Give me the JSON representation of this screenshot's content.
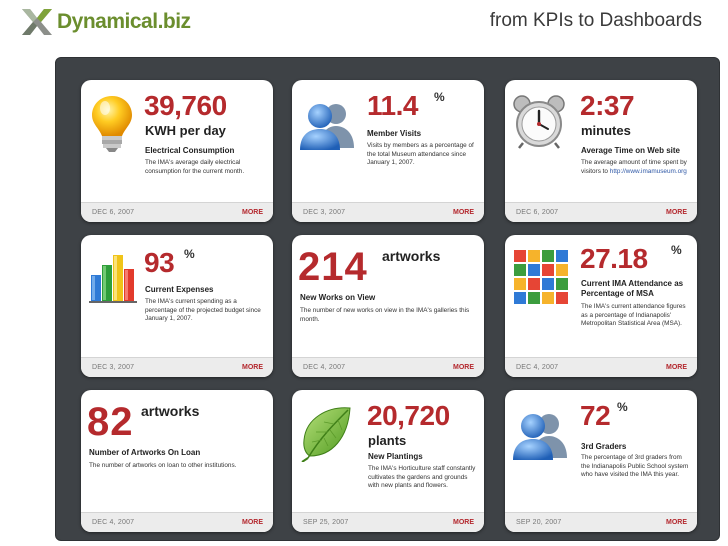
{
  "header": {
    "brand_prefix": "Dynamical",
    "brand_suffix": ".biz",
    "title": "from KPIs to Dashboards"
  },
  "colors": {
    "accent": "#b52a2d",
    "board": "#3e4246",
    "brand": "#6b8e2e"
  },
  "cards": {
    "electricity": {
      "icon": "lightbulb-icon",
      "value": "39,760",
      "unit": "KWH per day",
      "label": "Electrical Consumption",
      "description": "The IMA's average daily electrical consumption for the current month.",
      "date": "DEC 6, 2007",
      "more": "MORE"
    },
    "member_visits": {
      "icon": "users-icon",
      "value": "11.4",
      "suffix": "%",
      "label": "Member Visits",
      "description": "Visits by members as a percentage of the total Museum attendance since January 1, 2007.",
      "date": "DEC 3, 2007",
      "more": "MORE"
    },
    "time_on_site": {
      "icon": "alarm-clock-icon",
      "value": "2:37",
      "unit": "minutes",
      "label": "Average Time on Web site",
      "description": "The average amount of time spent by visitors to",
      "link": "http://www.imamuseum.org",
      "date": "DEC 6, 2007",
      "more": "MORE"
    },
    "expenses": {
      "icon": "bar-chart-icon",
      "value": "93",
      "suffix": "%",
      "label": "Current Expenses",
      "description": "The IMA's current spending as a percentage of the projected budget since January 1, 2007.",
      "date": "DEC 3, 2007",
      "more": "MORE"
    },
    "new_works": {
      "value": "214",
      "suffix": "artworks",
      "label": "New Works on View",
      "description": "The number of new works on view in the IMA's galleries this month.",
      "date": "DEC 4, 2007",
      "more": "MORE"
    },
    "attendance": {
      "icon": "color-grid-icon",
      "value": "27.18",
      "suffix": "%",
      "label": "Current IMA Attendance as Percentage of MSA",
      "description": "The IMA's current attendance figures as a percentage of Indianapolis' Metropolitan Statistical Area (MSA).",
      "date": "DEC 4, 2007",
      "more": "MORE"
    },
    "on_loan": {
      "value": "82",
      "suffix": "artworks",
      "label": "Number of Artworks On Loan",
      "description": "The number of artworks on loan to other institutions.",
      "date": "DEC 4, 2007",
      "more": "MORE"
    },
    "plantings": {
      "icon": "leaf-icon",
      "value": "20,720",
      "unit": "plants",
      "label": "New Plantings",
      "description": "The IMA's Horticulture staff constantly cultivates the gardens and grounds with new plants and flowers.",
      "date": "SEP 25, 2007",
      "more": "MORE"
    },
    "third_graders": {
      "icon": "users-icon",
      "value": "72",
      "suffix": "%",
      "label": "3rd Graders",
      "description": "The percentage of 3rd graders from the Indianapolis Public School system who have visited the IMA this year.",
      "date": "SEP 20, 2007",
      "more": "MORE"
    }
  }
}
